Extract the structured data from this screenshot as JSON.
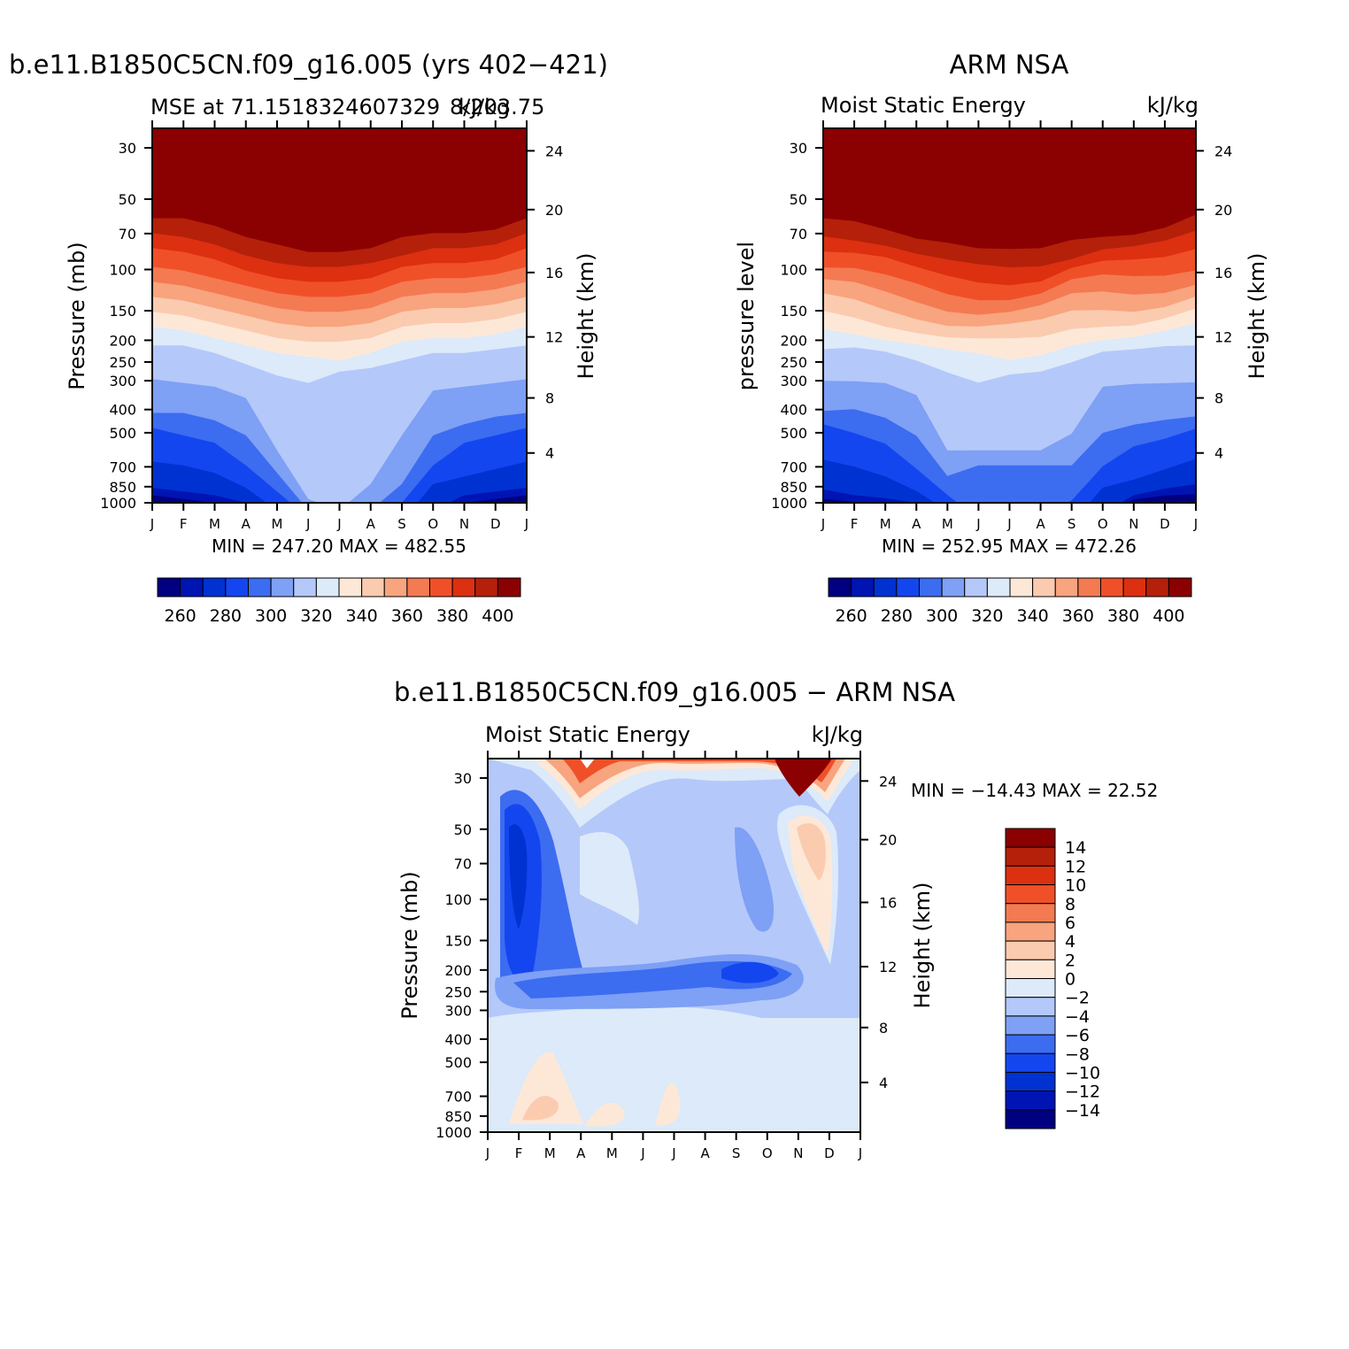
{
  "chart_data": [
    {
      "type": "heatmap",
      "id": "model",
      "case_title": "b.e11.B1850C5CN.f09_g16.005 (yrs 402−421)",
      "left_title": "MSE at 71.1518324607329",
      "center_overlap": "8/203.75",
      "right_title": "kJ/kg",
      "ylabel": "Pressure (mb)",
      "y2label": "Height (km)",
      "months": [
        "J",
        "F",
        "M",
        "A",
        "M",
        "J",
        "J",
        "A",
        "S",
        "O",
        "N",
        "D",
        "J"
      ],
      "pressure_ticks": [
        "30",
        "50",
        "70",
        "100",
        "150",
        "200",
        "250",
        "300",
        "400",
        "500",
        "700",
        "850",
        "1000"
      ],
      "height_ticks": [
        "24",
        "20",
        "16",
        "12",
        "8",
        "4"
      ],
      "min": "247.20",
      "max": "482.55",
      "minmax_text": "MIN = 247.20 MAX = 482.55",
      "colorbar_labels": [
        "260",
        "280",
        "300",
        "320",
        "340",
        "360",
        "380",
        "400"
      ],
      "bands_top_pct": [
        0.248,
        0.325,
        0.368,
        0.41,
        0.455,
        0.5,
        0.545,
        0.59,
        0.64,
        0.665,
        0.69,
        0.715,
        0.735,
        0.76,
        0.785,
        0.805
      ],
      "notes": "Contours of moist static energy; low values near surface (blue), high values aloft (dark red). Summer maximum intrusion of blues."
    },
    {
      "type": "heatmap",
      "id": "obs",
      "case_title": "ARM NSA",
      "left_title": "Moist Static Energy",
      "right_title": "kJ/kg",
      "ylabel": "pressure level",
      "y2label": "Height (km)",
      "months": [
        "J",
        "F",
        "M",
        "A",
        "M",
        "J",
        "J",
        "A",
        "S",
        "O",
        "N",
        "D",
        "J"
      ],
      "pressure_ticks": [
        "30",
        "50",
        "70",
        "100",
        "150",
        "200",
        "250",
        "300",
        "400",
        "500",
        "700",
        "850",
        "1000"
      ],
      "height_ticks": [
        "24",
        "20",
        "16",
        "12",
        "8",
        "4"
      ],
      "min": "252.95",
      "max": "472.26",
      "minmax_text": "MIN = 252.95 MAX = 472.26",
      "colorbar_labels": [
        "260",
        "280",
        "300",
        "320",
        "340",
        "360",
        "380",
        "400"
      ]
    },
    {
      "type": "heatmap",
      "id": "diff",
      "case_title": "b.e11.B1850C5CN.f09_g16.005 − ARM NSA",
      "left_title": "Moist Static Energy",
      "right_title": "kJ/kg",
      "ylabel": "Pressure (mb)",
      "y2label": "Height (km)",
      "months": [
        "J",
        "F",
        "M",
        "A",
        "M",
        "J",
        "J",
        "A",
        "S",
        "O",
        "N",
        "D",
        "J"
      ],
      "pressure_ticks": [
        "30",
        "50",
        "70",
        "100",
        "150",
        "200",
        "250",
        "300",
        "400",
        "500",
        "700",
        "850",
        "1000"
      ],
      "height_ticks": [
        "24",
        "20",
        "16",
        "12",
        "8",
        "4"
      ],
      "min": "−14.43",
      "max": "22.52",
      "minmax_text": "MIN = −14.43 MAX =  22.52",
      "colorbar_labels": [
        "14",
        "12",
        "10",
        "8",
        "6",
        "4",
        "2",
        "0",
        "−2",
        "−4",
        "−6",
        "−8",
        "−10",
        "−12",
        "−14"
      ]
    }
  ],
  "colors": {
    "scale16": [
      "#000080",
      "#0014b4",
      "#0032d2",
      "#1446f0",
      "#3c6cf0",
      "#7ea0f5",
      "#b4c8fa",
      "#dceafa",
      "#fde8d8",
      "#fbcbb0",
      "#f8a47e",
      "#f47a52",
      "#f05028",
      "#dc3010",
      "#b4200a",
      "#8b0000"
    ]
  }
}
